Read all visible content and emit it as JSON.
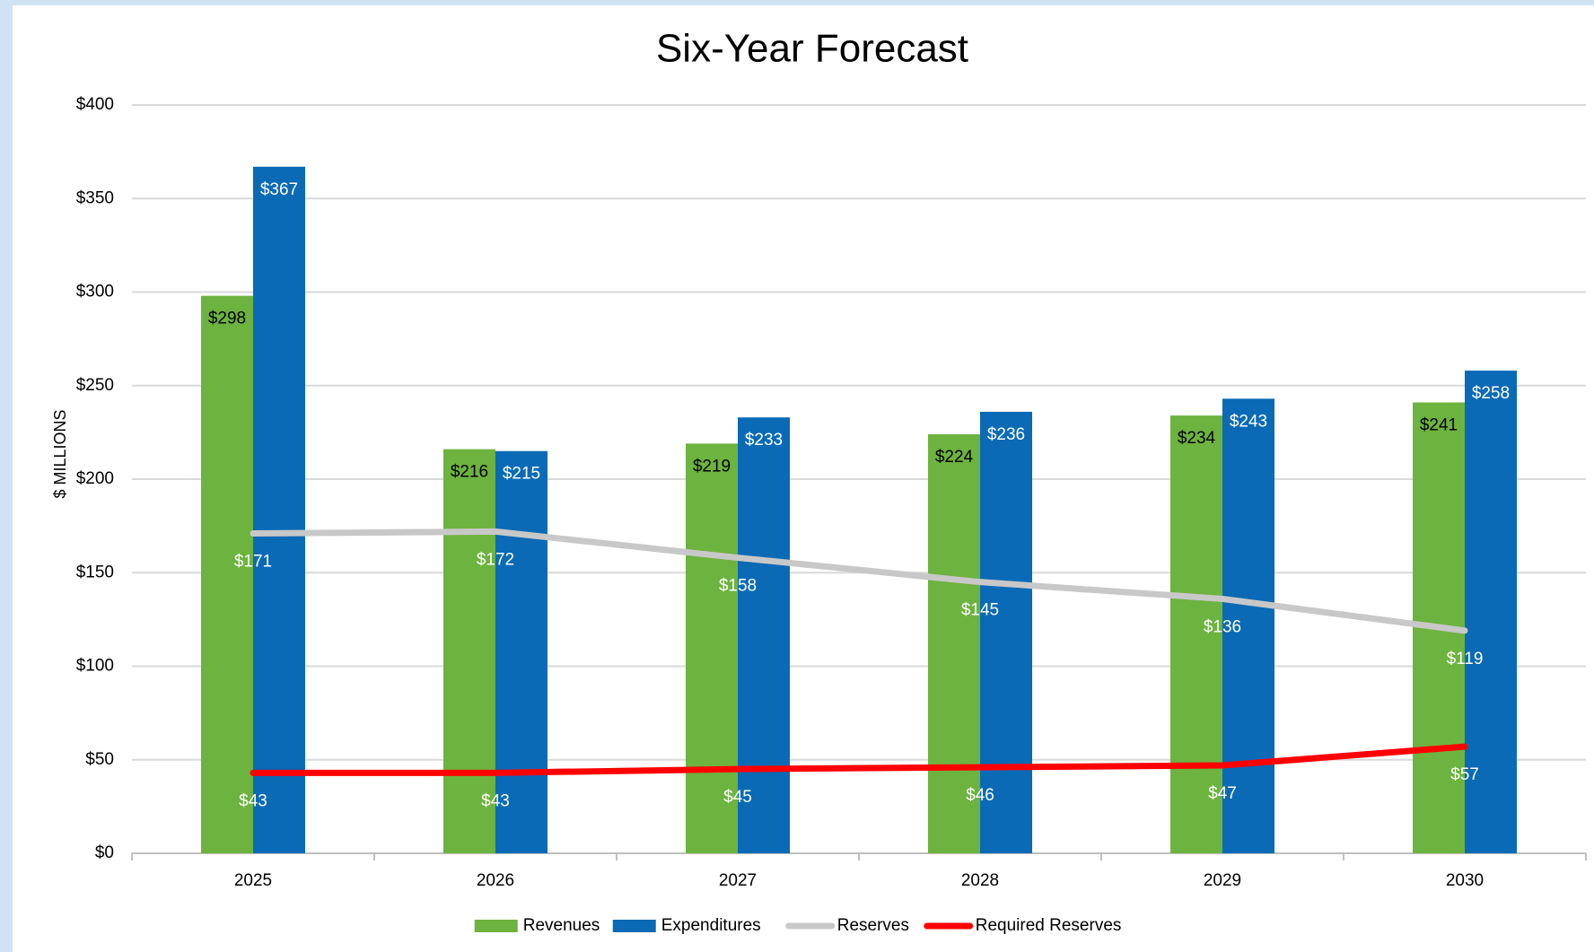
{
  "chart_data": {
    "type": "bar",
    "title": "Six-Year Forecast",
    "y_label": "$ MILLIONS",
    "categories": [
      "2025",
      "2026",
      "2027",
      "2028",
      "2029",
      "2030"
    ],
    "series": [
      {
        "name": "Revenues",
        "type": "bar",
        "color": "#6db33f",
        "values": [
          298,
          216,
          219,
          224,
          234,
          241
        ],
        "value_labels": [
          "$298",
          "$216",
          "$219",
          "$224",
          "$234",
          "$241"
        ]
      },
      {
        "name": "Expenditures",
        "type": "bar",
        "color": "#0a6ab6",
        "values": [
          367,
          215,
          233,
          236,
          243,
          258
        ],
        "value_labels": [
          "$367",
          "$215",
          "$233",
          "$236",
          "$243",
          "$258"
        ]
      },
      {
        "name": "Reserves",
        "type": "line",
        "color": "#c8c8c8",
        "values": [
          171,
          172,
          158,
          145,
          136,
          119
        ],
        "value_labels": [
          "$171",
          "$172",
          "$158",
          "$145",
          "$136",
          "$119"
        ]
      },
      {
        "name": "Required Reserves",
        "type": "line",
        "color": "#ff0000",
        "values": [
          43,
          43,
          45,
          46,
          47,
          57
        ],
        "value_labels": [
          "$43",
          "$43",
          "$45",
          "$46",
          "$47",
          "$57"
        ]
      }
    ],
    "ylim": [
      0,
      400
    ],
    "yticks": [
      {
        "value": 0,
        "label": "$0"
      },
      {
        "value": 50,
        "label": "$50"
      },
      {
        "value": 100,
        "label": "$100"
      },
      {
        "value": 150,
        "label": "$150"
      },
      {
        "value": 200,
        "label": "$200"
      },
      {
        "value": 250,
        "label": "$250"
      },
      {
        "value": 300,
        "label": "$300"
      },
      {
        "value": 350,
        "label": "$350"
      },
      {
        "value": 400,
        "label": "$400"
      }
    ],
    "grid": true,
    "legend": "bottom"
  }
}
